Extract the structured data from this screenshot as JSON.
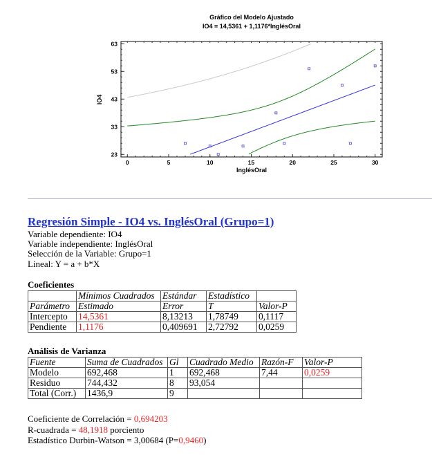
{
  "chart_data": {
    "type": "scatter",
    "title": "Gráfico del Modelo Ajustado",
    "subtitle": "IO4 = 14,5361 + 1,1176*InglésOral",
    "xlabel": "InglésOral",
    "ylabel": "IO4",
    "xlim": [
      0,
      30
    ],
    "ylim": [
      23,
      63
    ],
    "xticks": [
      0,
      5,
      10,
      15,
      20,
      25,
      30
    ],
    "yticks": [
      23,
      33,
      43,
      53,
      63
    ],
    "points": {
      "x": [
        7,
        10,
        11,
        14,
        18,
        19,
        22,
        26,
        27,
        30
      ],
      "y": [
        27,
        26,
        23,
        26,
        38,
        27,
        54,
        48,
        27,
        55
      ]
    },
    "fit": {
      "intercept": 14.5361,
      "slope": 1.1176
    },
    "bands": {
      "n": 10,
      "mse": 93.054,
      "xmean": 18.4,
      "sxx": 554.4,
      "t": 2.306
    },
    "colors": {
      "points": "#5555dd",
      "fit": "#3333dd",
      "confidence": "#228822",
      "prediction": "#c8c8c8"
    }
  },
  "report": {
    "title": "Regresión Simple - IO4 vs. InglésOral (Grupo=1)",
    "lines": [
      "Variable dependiente: IO4",
      "Variable independiente: InglésOral",
      "Selección de la Variable: Grupo=1",
      "Lineal: Y = a + b*X"
    ],
    "coef_heading": "Coeficientes",
    "coef_header1": [
      "",
      "Mínimos Cuadrados",
      "Estándar",
      "Estadístico",
      ""
    ],
    "coef_header2": [
      "Parámetro",
      "Estimado",
      "Error",
      "T",
      "Valor-P"
    ],
    "coef_rows": [
      [
        "Intercepto",
        "14,5361",
        "8,13213",
        "1,78749",
        "0,1117"
      ],
      [
        "Pendiente",
        "1,1176",
        "0,409691",
        "2,72792",
        "0,0259"
      ]
    ],
    "anova_heading": "Análisis de Varianza",
    "anova_header": [
      "Fuente",
      "Suma de Cuadrados",
      "Gl",
      "Cuadrado Medio",
      "Razón-F",
      "Valor-P"
    ],
    "anova_rows": [
      [
        "Modelo",
        "692,468",
        "1",
        "692,468",
        "7,44",
        "0,0259"
      ],
      [
        "Residuo",
        "744,432",
        "8",
        "93,054",
        "",
        ""
      ],
      [
        "Total (Corr.)",
        "1436,9",
        "9",
        "",
        "",
        ""
      ]
    ],
    "corr_label": "Coeficiente de Correlación = ",
    "corr_value": "0,694203",
    "r2_label": "R-cuadrada = ",
    "r2_value": "48,1918",
    "r2_suffix": " porciento",
    "dw_label": "Estadístico Durbin-Watson = 3,00684 (P=",
    "dw_value": "0,9460",
    "dw_suffix": ")"
  }
}
